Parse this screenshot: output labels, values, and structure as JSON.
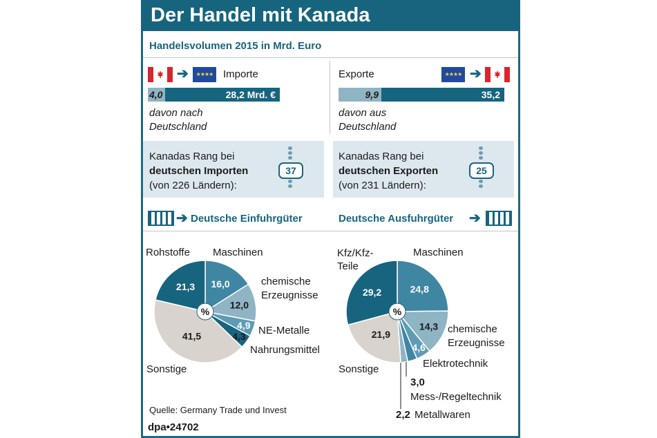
{
  "title": "Der Handel mit Kanada",
  "subtitle": "Handelsvolumen 2015 in Mrd. Euro",
  "imports": {
    "label": "Importe",
    "germany_value": "4,0",
    "total_value": "28,2 Mrd. €",
    "germany_num": 4.0,
    "total_num": 28.2,
    "note_line1": "davon nach",
    "note_line2": "Deutschland"
  },
  "exports": {
    "label": "Exporte",
    "germany_value": "9,9",
    "total_value": "35,2",
    "germany_num": 9.9,
    "total_num": 35.2,
    "note_line1": "davon aus",
    "note_line2": "Deutschland"
  },
  "rank_import": {
    "line1": "Kanadas Rang bei",
    "line2": "deutschen Importen",
    "line3": "(von 226 Ländern):",
    "rank": "37"
  },
  "rank_export": {
    "line1": "Kanadas Rang bei",
    "line2": "deutschen Exporten",
    "line3": "(von 231 Ländern):",
    "rank": "25"
  },
  "section_import": "Deutsche Einfuhrgüter",
  "section_export": "Deutsche Ausfuhrgüter",
  "percent_sign": "%",
  "source": "Quelle: Germany Trade und Invest",
  "credit": "dpa•24702",
  "colors": {
    "brand": "#17647f",
    "light": "#8fb4c4",
    "mid": "#3f86a3",
    "grey": "#d9d3cd",
    "panel": "#dde8ee"
  },
  "chart_data": [
    {
      "type": "pie",
      "title": "Deutsche Einfuhrgüter",
      "slices": [
        {
          "label": "Rohstoffe",
          "value": 21.3,
          "text": "21,3"
        },
        {
          "label": "Maschinen",
          "value": 16.0,
          "text": "16,0"
        },
        {
          "label": "chemische Erzeugnisse",
          "value": 12.0,
          "text": "12,0"
        },
        {
          "label": "NE-Metalle",
          "value": 4.9,
          "text": "4,9"
        },
        {
          "label": "Nahrungsmittel",
          "value": 4.3,
          "text": "4,3"
        },
        {
          "label": "Sonstige",
          "value": 41.5,
          "text": "41,5"
        }
      ]
    },
    {
      "type": "pie",
      "title": "Deutsche Ausfuhrgüter",
      "slices": [
        {
          "label": "Kfz/Kfz-Teile",
          "value": 29.2,
          "text": "29,2"
        },
        {
          "label": "Maschinen",
          "value": 24.8,
          "text": "24,8"
        },
        {
          "label": "chemische Erzeugnisse",
          "value": 14.3,
          "text": "14,3"
        },
        {
          "label": "Elektrotechnik",
          "value": 4.6,
          "text": "4,6"
        },
        {
          "label": "Mess-/Regeltechnik",
          "value": 3.0,
          "text": "3,0"
        },
        {
          "label": "Metallwaren",
          "value": 2.2,
          "text": "2,2"
        },
        {
          "label": "Sonstige",
          "value": 21.9,
          "text": "21,9"
        }
      ]
    }
  ]
}
